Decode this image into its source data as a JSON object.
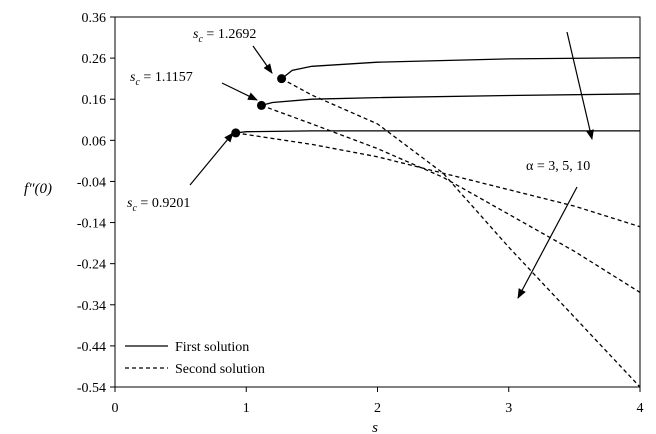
{
  "chart_data": {
    "type": "line",
    "xlabel": "s",
    "ylabel": "f″(0)",
    "xlim": [
      0,
      4
    ],
    "ylim": [
      -0.54,
      0.36
    ],
    "xticks": [
      "0",
      "1",
      "2",
      "3",
      "4"
    ],
    "yticks": [
      "0.36",
      "0.26",
      "0.16",
      "0.06",
      "-0.04",
      "-0.14",
      "-0.24",
      "-0.34",
      "-0.44",
      "-0.54"
    ],
    "grid": false,
    "legend": {
      "placement": "bottom-left",
      "entries": [
        {
          "label": "First solution",
          "style": "solid"
        },
        {
          "label": "Second solution",
          "style": "dashed"
        }
      ]
    },
    "series": [
      {
        "style": "solid",
        "group": "first",
        "x": [
          0.9201,
          1.0,
          1.5,
          2.0,
          3.0,
          4.0
        ],
        "y": [
          0.078,
          0.081,
          0.083,
          0.083,
          0.083,
          0.083
        ]
      },
      {
        "style": "solid",
        "group": "first",
        "x": [
          1.1157,
          1.2,
          1.5,
          2.0,
          3.0,
          4.0
        ],
        "y": [
          0.145,
          0.152,
          0.16,
          0.164,
          0.169,
          0.173
        ]
      },
      {
        "style": "solid",
        "group": "first",
        "x": [
          1.2692,
          1.35,
          1.5,
          2.0,
          3.0,
          4.0
        ],
        "y": [
          0.21,
          0.23,
          0.24,
          0.25,
          0.258,
          0.261
        ]
      },
      {
        "style": "dashed",
        "group": "second",
        "x": [
          0.9201,
          1.5,
          2.0,
          2.5,
          3.0,
          3.5,
          4.0
        ],
        "y": [
          0.078,
          0.05,
          0.02,
          -0.02,
          -0.06,
          -0.1,
          -0.15
        ]
      },
      {
        "style": "dashed",
        "group": "second",
        "x": [
          1.1157,
          1.5,
          2.0,
          2.5,
          3.0,
          3.5,
          4.0
        ],
        "y": [
          0.145,
          0.1,
          0.04,
          -0.03,
          -0.12,
          -0.21,
          -0.31
        ]
      },
      {
        "style": "dashed",
        "group": "second",
        "x": [
          1.2692,
          1.5,
          2.0,
          2.5,
          3.0,
          3.5,
          4.0
        ],
        "y": [
          0.21,
          0.17,
          0.1,
          -0.02,
          -0.2,
          -0.37,
          -0.54
        ]
      }
    ],
    "critical_points": [
      {
        "x": 0.9201,
        "y": 0.078,
        "label": "s_c = 0.9201"
      },
      {
        "x": 1.1157,
        "y": 0.145,
        "label": "s_c = 1.1157"
      },
      {
        "x": 1.2692,
        "y": 0.21,
        "label": "s_c = 1.2692"
      }
    ],
    "annotations": {
      "alpha_label": "α = 3, 5, 10",
      "sc_labels": [
        "1.2692",
        "1.1157",
        "0.9201"
      ]
    }
  }
}
